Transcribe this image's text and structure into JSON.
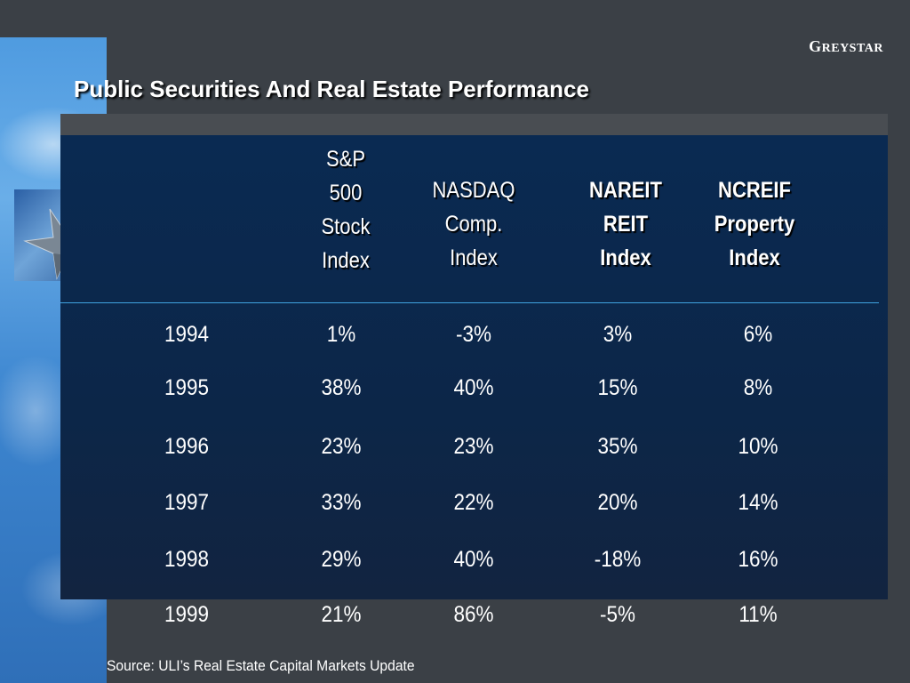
{
  "logo": {
    "first": "G",
    "rest": "REYSTAR"
  },
  "title": "Public Securities And Real Estate Performance",
  "columns": [
    {
      "lines": [
        "S&P",
        "500",
        "Stock",
        "Index"
      ]
    },
    {
      "lines": [
        "NASDAQ",
        "Comp.",
        "Index"
      ]
    },
    {
      "lines": [
        "NAREIT",
        "REIT",
        "Index"
      ]
    },
    {
      "lines": [
        "NCREIF",
        "Property",
        "Index"
      ]
    }
  ],
  "rows": [
    {
      "year": "1994",
      "values": [
        "1%",
        "-3%",
        "3%",
        "6%"
      ]
    },
    {
      "year": "1995",
      "values": [
        "38%",
        "40%",
        "15%",
        "8%"
      ]
    },
    {
      "year": "1996",
      "values": [
        "23%",
        "23%",
        "35%",
        "10%"
      ]
    },
    {
      "year": "1997",
      "values": [
        "33%",
        "22%",
        "20%",
        "14%"
      ]
    },
    {
      "year": "1998",
      "values": [
        "29%",
        "40%",
        "-18%",
        "16%"
      ]
    },
    {
      "year": "1999",
      "values": [
        "21%",
        "86%",
        "-5%",
        "11%"
      ]
    }
  ],
  "source": "Source: ULI’s Real Estate Capital Markets Update"
}
